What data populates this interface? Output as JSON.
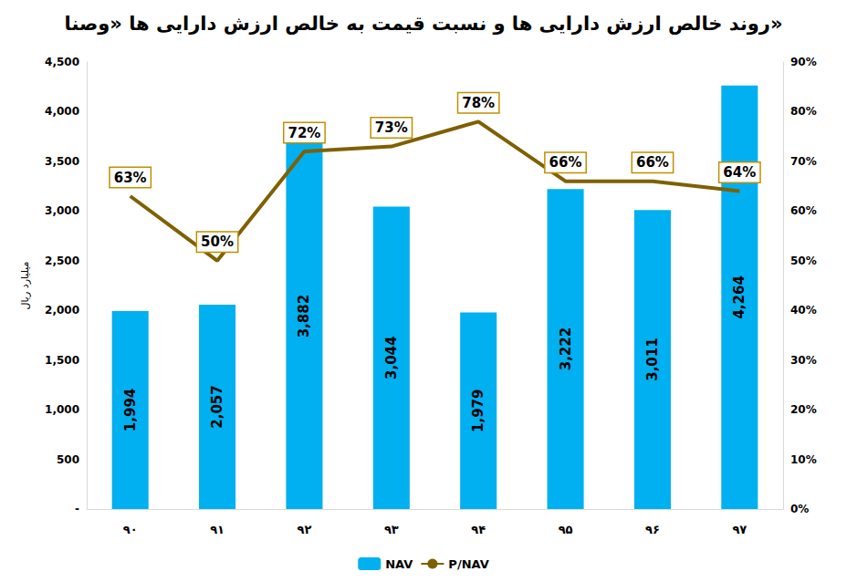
{
  "chart_data": {
    "type": "bar",
    "title": "روند خالص ارزش دارایی ها و نسبت قیمت به خالص ارزش دارایی ها «وصنا»",
    "y_label": "میلیارد ریال",
    "categories": [
      "۹۰",
      "۹۱",
      "۹۲",
      "۹۳",
      "۹۴",
      "۹۵",
      "۹۶",
      "۹۷"
    ],
    "series": [
      {
        "name": "NAV",
        "type": "bar",
        "color": "#00b0f0",
        "values": [
          1994,
          2057,
          3882,
          3044,
          1979,
          3222,
          3011,
          4264
        ],
        "value_labels": [
          "1,994",
          "2,057",
          "3,882",
          "3,044",
          "1,979",
          "3,222",
          "3,011",
          "4,264"
        ]
      },
      {
        "name": "P/NAV",
        "type": "line",
        "axis": "y2",
        "color": "#7f6000",
        "values": [
          63,
          50,
          72,
          73,
          78,
          66,
          66,
          64
        ],
        "value_labels": [
          "63%",
          "50%",
          "72%",
          "73%",
          "78%",
          "66%",
          "66%",
          "64%"
        ]
      }
    ],
    "ylim": [
      0,
      4500
    ],
    "yticks": [
      {
        "value": 0,
        "label": "-"
      },
      500,
      {
        "value": 1000,
        "label": "1,000"
      },
      {
        "value": 1500,
        "label": "1,500"
      },
      {
        "value": 2000,
        "label": "2,000"
      },
      {
        "value": 2500,
        "label": "2,500"
      },
      {
        "value": 3000,
        "label": "3,000"
      },
      {
        "value": 3500,
        "label": "3,500"
      },
      {
        "value": 4000,
        "label": "4,000"
      },
      {
        "value": 4500,
        "label": "4,500"
      }
    ],
    "y2lim": [
      0,
      90
    ],
    "y2ticks": [
      {
        "value": 0,
        "label": "0%"
      },
      {
        "value": 10,
        "label": "10%"
      },
      {
        "value": 20,
        "label": "20%"
      },
      {
        "value": 30,
        "label": "30%"
      },
      {
        "value": 40,
        "label": "40%"
      },
      {
        "value": 50,
        "label": "50%"
      },
      {
        "value": 60,
        "label": "60%"
      },
      {
        "value": 70,
        "label": "70%"
      },
      {
        "value": 80,
        "label": "80%"
      },
      {
        "value": 90,
        "label": "90%"
      }
    ],
    "data_labels": true,
    "legend": "bottom",
    "grid": false
  }
}
